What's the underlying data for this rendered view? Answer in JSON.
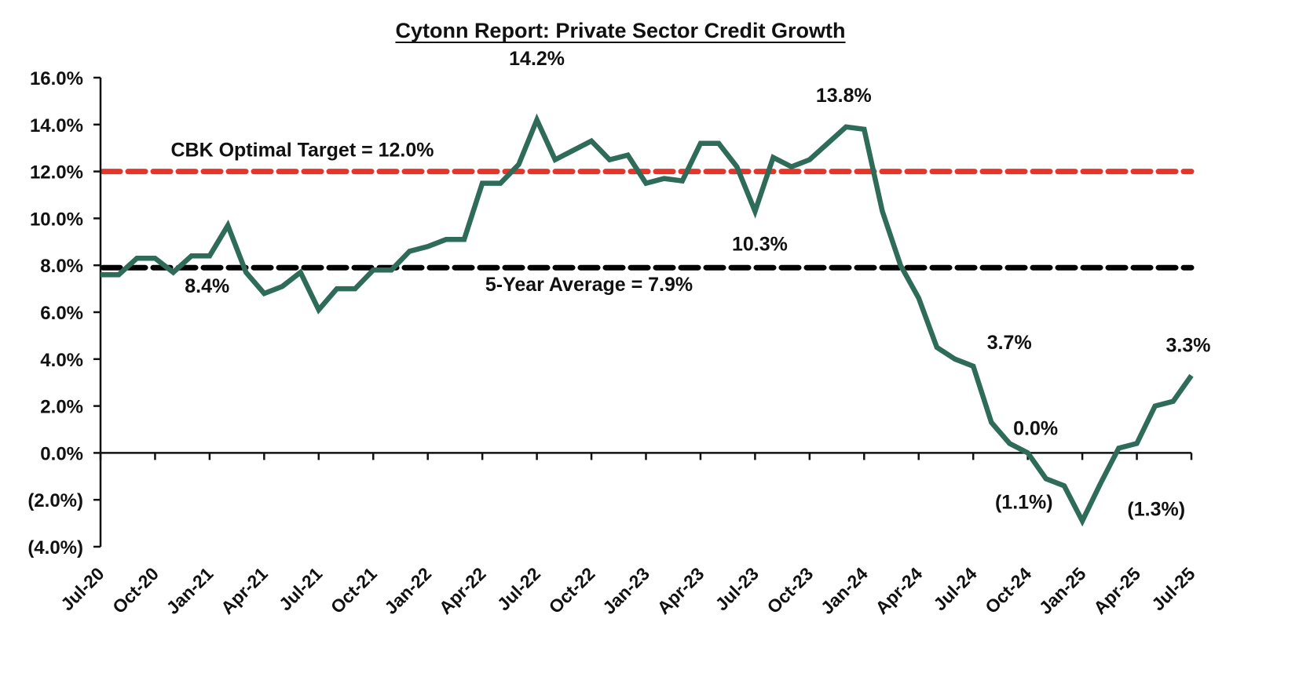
{
  "chart_data": {
    "type": "line",
    "title": "Cytonn Report: Private Sector Credit Growth",
    "xlabel": "",
    "ylabel": "",
    "ylim": [
      -4.0,
      16.0
    ],
    "y_ticks": [
      16.0,
      14.0,
      12.0,
      10.0,
      8.0,
      6.0,
      4.0,
      2.0,
      0.0,
      -2.0,
      -4.0
    ],
    "y_tick_labels": [
      "16.0%",
      "14.0%",
      "12.0%",
      "10.0%",
      "8.0%",
      "6.0%",
      "4.0%",
      "2.0%",
      "0.0%",
      "(2.0%)",
      "(4.0%)"
    ],
    "x_tick_labels": [
      "Jul-20",
      "Oct-20",
      "Jan-21",
      "Apr-21",
      "Jul-21",
      "Oct-21",
      "Jan-22",
      "Apr-22",
      "Jul-22",
      "Oct-22",
      "Jan-23",
      "Apr-23",
      "Jul-23",
      "Oct-23",
      "Jan-24",
      "Apr-24",
      "Jul-24",
      "Oct-24",
      "Jan-25",
      "Apr-25",
      "Jul-25"
    ],
    "x_tick_every_months": 3,
    "grid": false,
    "legend": "none",
    "x": [
      "Jul-20",
      "Aug-20",
      "Sep-20",
      "Oct-20",
      "Nov-20",
      "Dec-20",
      "Jan-21",
      "Feb-21",
      "Mar-21",
      "Apr-21",
      "May-21",
      "Jun-21",
      "Jul-21",
      "Aug-21",
      "Sep-21",
      "Oct-21",
      "Nov-21",
      "Dec-21",
      "Jan-22",
      "Feb-22",
      "Mar-22",
      "Apr-22",
      "May-22",
      "Jun-22",
      "Jul-22",
      "Aug-22",
      "Sep-22",
      "Oct-22",
      "Nov-22",
      "Dec-22",
      "Jan-23",
      "Feb-23",
      "Mar-23",
      "Apr-23",
      "May-23",
      "Jun-23",
      "Jul-23",
      "Aug-23",
      "Sep-23",
      "Oct-23",
      "Nov-23",
      "Dec-23",
      "Jan-24",
      "Feb-24",
      "Mar-24",
      "Apr-24",
      "May-24",
      "Jun-24",
      "Jul-24",
      "Aug-24",
      "Sep-24",
      "Oct-24",
      "Nov-24",
      "Dec-24",
      "Jan-25",
      "Feb-25",
      "Mar-25",
      "Apr-25",
      "May-25",
      "Jun-25",
      "Jul-25"
    ],
    "series": [
      {
        "name": "Private Sector Credit Growth",
        "color": "#2e6b58",
        "values": [
          7.6,
          7.6,
          8.3,
          8.3,
          7.7,
          8.4,
          8.4,
          9.7,
          7.7,
          6.8,
          7.1,
          7.7,
          6.1,
          7.0,
          7.0,
          7.8,
          7.8,
          8.6,
          8.8,
          9.1,
          9.1,
          11.5,
          11.5,
          12.3,
          14.2,
          12.5,
          12.9,
          13.3,
          12.5,
          12.7,
          11.5,
          11.7,
          11.6,
          13.2,
          13.2,
          12.2,
          10.3,
          12.6,
          12.2,
          12.5,
          13.2,
          13.9,
          13.8,
          10.3,
          8.0,
          6.6,
          4.5,
          4.0,
          3.7,
          1.3,
          0.4,
          0.0,
          -1.1,
          -1.4,
          -2.9,
          -1.3,
          0.2,
          0.4,
          2.0,
          2.2,
          3.3
        ]
      }
    ],
    "reference_lines": [
      {
        "name": "cbk-target",
        "label": "CBK Optimal Target = 12.0%",
        "value": 12.0,
        "color": "#e8352a",
        "style": "dashed"
      },
      {
        "name": "five-year-average",
        "label": "5-Year Average = 7.9%",
        "value": 7.9,
        "color": "#000000",
        "style": "dashed"
      }
    ],
    "annotations": [
      {
        "text": "8.4%",
        "x": "Dec-20"
      },
      {
        "text": "14.2%",
        "x": "Jul-22"
      },
      {
        "text": "10.3%",
        "x": "Jul-23"
      },
      {
        "text": "13.8%",
        "x": "Jan-24"
      },
      {
        "text": "3.7%",
        "x": "Jul-24"
      },
      {
        "text": "0.0%",
        "x": "Oct-24"
      },
      {
        "text": "(1.1%)",
        "x": "Nov-24"
      },
      {
        "text": "(1.3%)",
        "x": "Feb-25"
      },
      {
        "text": "3.3%",
        "x": "Jul-25"
      }
    ]
  }
}
